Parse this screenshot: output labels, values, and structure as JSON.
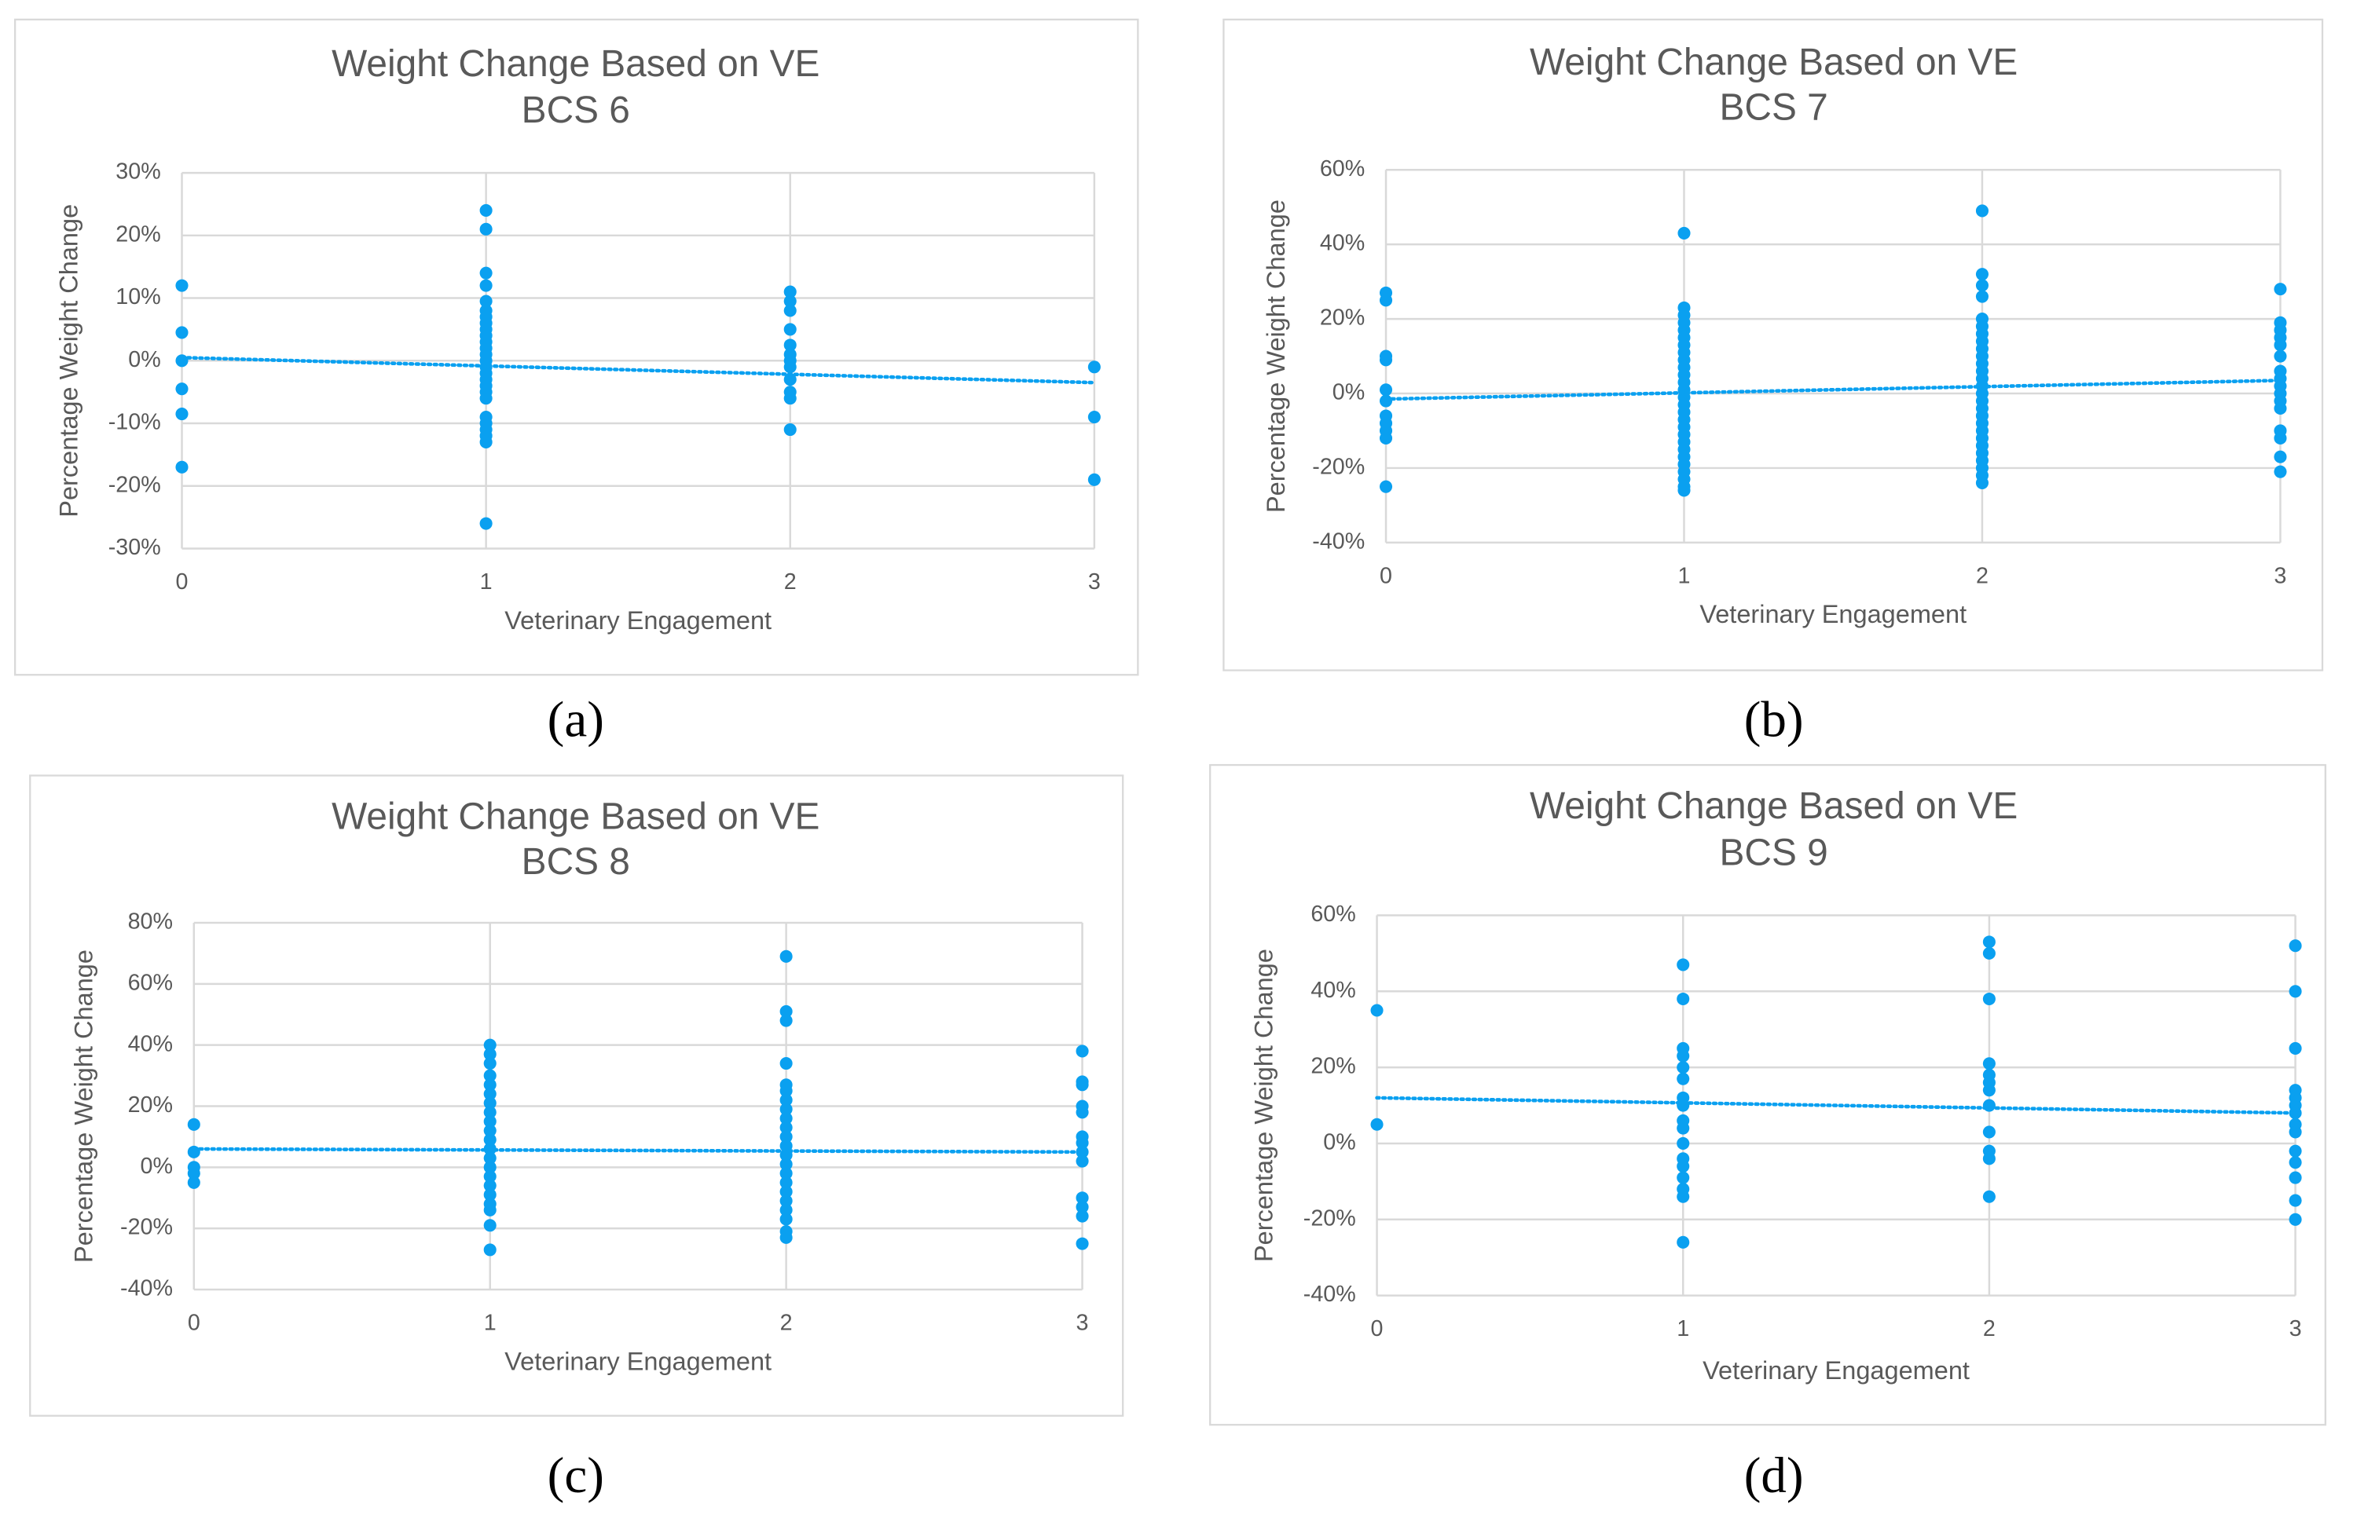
{
  "chart_data": [
    {
      "type": "scatter",
      "title": "Weight Change Based on VE",
      "subtitle": "BCS 6",
      "caption": "(a)",
      "x_label": "Veterinary Engagement",
      "y_label": "Percentage Weight Change",
      "color": "#0aa0f0",
      "grid": true,
      "xlim": [
        0,
        3
      ],
      "xticks": [
        0,
        1,
        2,
        3
      ],
      "ylim": [
        -30,
        30
      ],
      "yticks": [
        {
          "value": -30,
          "label": "-30%"
        },
        {
          "value": -20,
          "label": "-20%"
        },
        {
          "value": -10,
          "label": "-10%"
        },
        {
          "value": 0,
          "label": "0%"
        },
        {
          "value": 10,
          "label": "10%"
        },
        {
          "value": 20,
          "label": "20%"
        },
        {
          "value": 30,
          "label": "30%"
        }
      ],
      "x": [
        0,
        0,
        0,
        0,
        0,
        0,
        1,
        1,
        1,
        1,
        1,
        1,
        1,
        1,
        1,
        1,
        1,
        1,
        1,
        1,
        1,
        1,
        1,
        1,
        1,
        1,
        1,
        1,
        1,
        1,
        1,
        1,
        2,
        2,
        2,
        2,
        2,
        2,
        2,
        2,
        2,
        2,
        2,
        2,
        3,
        3,
        3
      ],
      "values": [
        12,
        4.5,
        0,
        -4.5,
        -8.5,
        -17,
        24,
        21,
        14,
        12,
        9.5,
        8,
        7,
        6,
        5,
        4,
        3,
        2,
        1,
        0,
        -1,
        -2,
        -3,
        -4,
        -5,
        -6,
        -9,
        -10,
        -11,
        -12,
        -13,
        -26,
        11,
        9.5,
        8,
        5,
        2.5,
        1,
        0,
        -1,
        -3,
        -5,
        -6,
        -11,
        -1,
        -9,
        -19
      ],
      "trendline": {
        "x": [
          0,
          3
        ],
        "y": [
          0.5,
          -3.5
        ]
      }
    },
    {
      "type": "scatter",
      "title": "Weight Change Based on VE",
      "subtitle": "BCS 7",
      "caption": "(b)",
      "x_label": "Veterinary Engagement",
      "y_label": "Percentage Weight Change",
      "color": "#0aa0f0",
      "grid": true,
      "xlim": [
        0,
        3
      ],
      "xticks": [
        0,
        1,
        2,
        3
      ],
      "ylim": [
        -40,
        60
      ],
      "yticks": [
        {
          "value": -40,
          "label": "-40%"
        },
        {
          "value": -20,
          "label": "-20%"
        },
        {
          "value": 0,
          "label": "0%"
        },
        {
          "value": 20,
          "label": "20%"
        },
        {
          "value": 40,
          "label": "40%"
        },
        {
          "value": 60,
          "label": "60%"
        }
      ],
      "x": [
        0,
        0,
        0,
        0,
        0,
        0,
        0,
        0,
        0,
        0,
        0,
        1,
        1,
        1,
        1,
        1,
        1,
        1,
        1,
        1,
        1,
        1,
        1,
        1,
        1,
        1,
        1,
        1,
        1,
        1,
        1,
        1,
        1,
        1,
        1,
        1,
        1,
        1,
        2,
        2,
        2,
        2,
        2,
        2,
        2,
        2,
        2,
        2,
        2,
        2,
        2,
        2,
        2,
        2,
        2,
        2,
        2,
        2,
        2,
        2,
        2,
        2,
        2,
        2,
        2,
        3,
        3,
        3,
        3,
        3,
        3,
        3,
        3,
        3,
        3,
        3,
        3,
        3,
        3,
        3,
        3
      ],
      "values": [
        27,
        25,
        10,
        9,
        1,
        -2,
        -6,
        -8,
        -10,
        -12,
        -25,
        43,
        23,
        21,
        19,
        17,
        15,
        13,
        11,
        9,
        7,
        5,
        3,
        1,
        -1,
        -3,
        -5,
        -7,
        -9,
        -11,
        -13,
        -15,
        -17,
        -19,
        -21,
        -23,
        -25,
        -26,
        49,
        32,
        29,
        26,
        20,
        18,
        16,
        14,
        12,
        10,
        8,
        6,
        4,
        2,
        0,
        -2,
        -4,
        -6,
        -8,
        -10,
        -12,
        -14,
        -16,
        -18,
        -20,
        -22,
        -24,
        28,
        19,
        17,
        15,
        13,
        10,
        6,
        4,
        2,
        0,
        -2,
        -4,
        -10,
        -12,
        -17,
        -21
      ],
      "trendline": {
        "x": [
          0,
          3
        ],
        "y": [
          -1.5,
          3.5
        ]
      }
    },
    {
      "type": "scatter",
      "title": "Weight Change Based on VE",
      "subtitle": "BCS 8",
      "caption": "(c)",
      "x_label": "Veterinary Engagement",
      "y_label": "Percentage Weight Change",
      "color": "#0aa0f0",
      "grid": true,
      "xlim": [
        0,
        3
      ],
      "xticks": [
        0,
        1,
        2,
        3
      ],
      "ylim": [
        -40,
        80
      ],
      "yticks": [
        {
          "value": -40,
          "label": "-40%"
        },
        {
          "value": -20,
          "label": "-20%"
        },
        {
          "value": 0,
          "label": "0%"
        },
        {
          "value": 20,
          "label": "20%"
        },
        {
          "value": 40,
          "label": "40%"
        },
        {
          "value": 60,
          "label": "60%"
        },
        {
          "value": 80,
          "label": "80%"
        }
      ],
      "x": [
        0,
        0,
        0,
        0,
        0,
        1,
        1,
        1,
        1,
        1,
        1,
        1,
        1,
        1,
        1,
        1,
        1,
        1,
        1,
        1,
        1,
        1,
        1,
        1,
        1,
        1,
        2,
        2,
        2,
        2,
        2,
        2,
        2,
        2,
        2,
        2,
        2,
        2,
        2,
        2,
        2,
        2,
        2,
        2,
        2,
        2,
        2,
        2,
        3,
        3,
        3,
        3,
        3,
        3,
        3,
        3,
        3,
        3,
        3,
        3,
        3
      ],
      "values": [
        14,
        5,
        0,
        -2,
        -5,
        40,
        37,
        34,
        30,
        27,
        24,
        21,
        18,
        15,
        12,
        9,
        6,
        3,
        0,
        -3,
        -6,
        -9,
        -12,
        -14,
        -19,
        -27,
        69,
        51,
        48,
        34,
        27,
        25,
        22,
        19,
        16,
        13,
        10,
        7,
        4,
        1,
        -2,
        -5,
        -8,
        -11,
        -14,
        -17,
        -21,
        -23,
        38,
        28,
        27,
        20,
        18,
        10,
        8,
        5,
        2,
        -10,
        -13,
        -16,
        -25
      ],
      "trendline": {
        "x": [
          0,
          3
        ],
        "y": [
          6,
          5
        ]
      }
    },
    {
      "type": "scatter",
      "title": "Weight Change Based on VE",
      "subtitle": "BCS 9",
      "caption": "(d)",
      "x_label": "Veterinary Engagement",
      "y_label": "Percentage Weight Change",
      "color": "#0aa0f0",
      "grid": true,
      "xlim": [
        0,
        3
      ],
      "xticks": [
        0,
        1,
        2,
        3
      ],
      "ylim": [
        -40,
        60
      ],
      "yticks": [
        {
          "value": -40,
          "label": "-40%"
        },
        {
          "value": -20,
          "label": "-20%"
        },
        {
          "value": 0,
          "label": "0%"
        },
        {
          "value": 20,
          "label": "20%"
        },
        {
          "value": 40,
          "label": "40%"
        },
        {
          "value": 60,
          "label": "60%"
        }
      ],
      "x": [
        0,
        0,
        1,
        1,
        1,
        1,
        1,
        1,
        1,
        1,
        1,
        1,
        1,
        1,
        1,
        1,
        1,
        1,
        1,
        2,
        2,
        2,
        2,
        2,
        2,
        2,
        2,
        2,
        2,
        2,
        2,
        3,
        3,
        3,
        3,
        3,
        3,
        3,
        3,
        3,
        3,
        3,
        3,
        3,
        3
      ],
      "values": [
        35,
        5,
        47,
        38,
        25,
        23,
        20,
        17,
        12,
        10,
        6,
        4,
        0,
        -4,
        -6,
        -9,
        -12,
        -14,
        -26,
        53,
        50,
        38,
        21,
        18,
        16,
        14,
        10,
        3,
        -2,
        -4,
        -14,
        52,
        40,
        25,
        14,
        12,
        10,
        8,
        5,
        3,
        -2,
        -5,
        -9,
        -15,
        -20
      ],
      "trendline": {
        "x": [
          0,
          3
        ],
        "y": [
          12,
          8
        ]
      }
    }
  ]
}
